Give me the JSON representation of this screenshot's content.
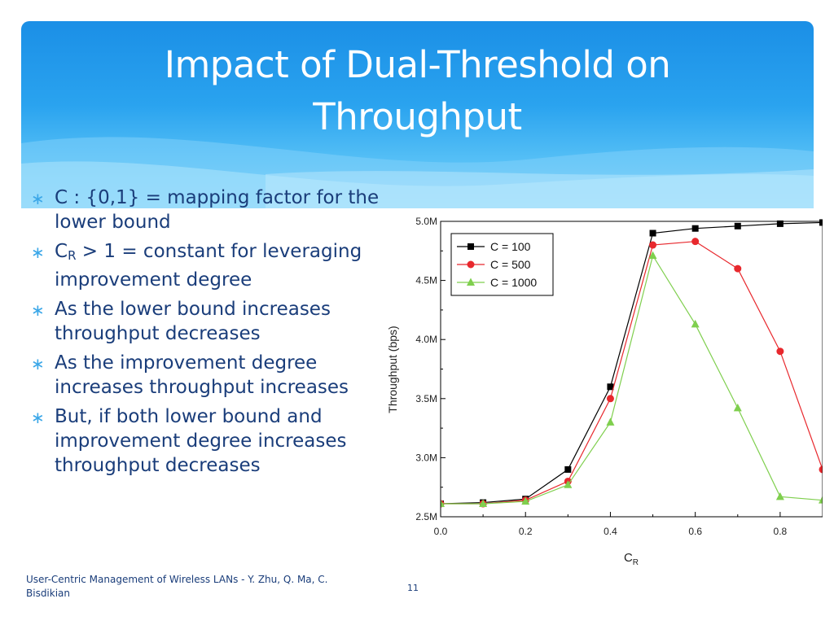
{
  "slide": {
    "title_line1": "Impact of Dual-Threshold on",
    "title_line2": "Throughput",
    "bullets": [
      {
        "text": "C : {0,1} = mapping factor for the lower bound"
      },
      {
        "prefix": "C",
        "sub": "R",
        "suffix": " > 1 = constant for leveraging improvement degree"
      },
      {
        "text": "As the lower bound increases throughput decreases"
      },
      {
        "text": "As the improvement degree increases throughput increases"
      },
      {
        "text": "But, if both lower bound and improvement degree increases throughput decreases"
      }
    ],
    "bullet_icon": "asterisk-bullet-icon",
    "footer": "User-Centric Management of Wireless LANs - Y. Zhu, Q. Ma, C. Bisdikian",
    "page_number": "11",
    "colors": {
      "header_blue": "#2aa3ef",
      "text_navy": "#1a3d7a",
      "bullet_blue": "#3ba7e8"
    }
  },
  "chart_data": {
    "type": "line",
    "xlabel_main": "C",
    "xlabel_sub": "R",
    "ylabel": "Throughput (bps)",
    "xlim": [
      0,
      0.9
    ],
    "ylim": [
      2.5,
      5.0
    ],
    "x_ticks": [
      "0.0",
      "0.2",
      "0.4",
      "0.6",
      "0.8"
    ],
    "y_ticks": [
      "2.5M",
      "3.0M",
      "3.5M",
      "4.0M",
      "4.5M",
      "5.0M"
    ],
    "legend_position": "top-left",
    "series": [
      {
        "name": "C = 100",
        "color": "#000000",
        "marker": "square",
        "x": [
          0,
          0.1,
          0.2,
          0.3,
          0.4,
          0.5,
          0.6,
          0.7,
          0.8,
          0.9
        ],
        "y": [
          2.61,
          2.62,
          2.65,
          2.9,
          3.6,
          4.9,
          4.94,
          4.96,
          4.98,
          4.99
        ]
      },
      {
        "name": "C = 500",
        "color": "#e8282d",
        "marker": "circle",
        "x": [
          0,
          0.1,
          0.2,
          0.3,
          0.4,
          0.5,
          0.6,
          0.7,
          0.8,
          0.9
        ],
        "y": [
          2.61,
          2.61,
          2.64,
          2.8,
          3.5,
          4.8,
          4.83,
          4.6,
          3.9,
          2.9
        ]
      },
      {
        "name": "C = 1000",
        "color": "#7fcf4e",
        "marker": "triangle",
        "x": [
          0,
          0.1,
          0.2,
          0.3,
          0.4,
          0.5,
          0.6,
          0.7,
          0.8,
          0.9
        ],
        "y": [
          2.61,
          2.61,
          2.63,
          2.77,
          3.3,
          4.71,
          4.13,
          3.42,
          2.67,
          2.64
        ]
      }
    ]
  }
}
